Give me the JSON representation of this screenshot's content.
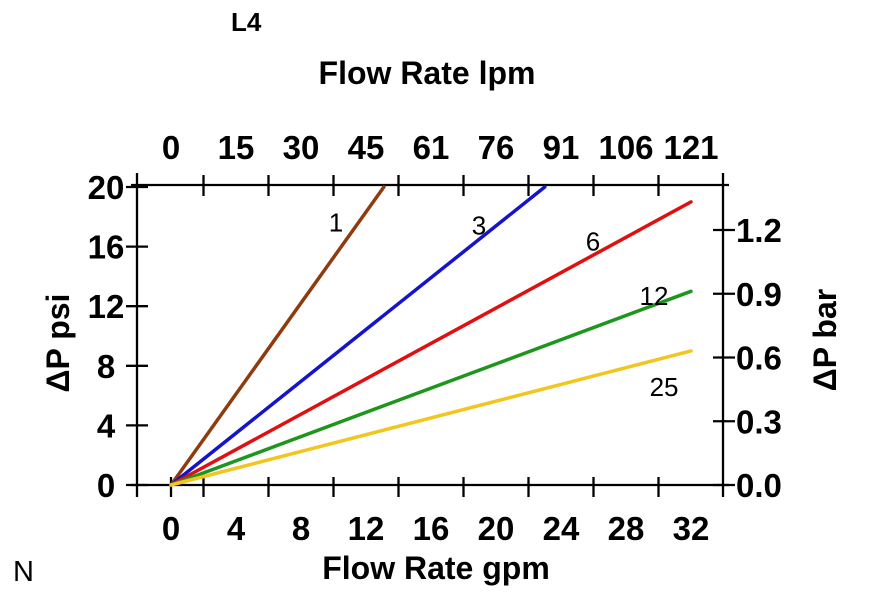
{
  "chart_data": {
    "type": "line",
    "title": "L4",
    "corner_note": "N",
    "grid": false,
    "legend": "inline curve labels",
    "axes": {
      "top": {
        "title": "Flow Rate lpm",
        "unit": "lpm",
        "labels": [
          "0",
          "15",
          "30",
          "45",
          "61",
          "76",
          "91",
          "106",
          "121"
        ],
        "label_positions_gpm": [
          0,
          4,
          8,
          12,
          16,
          20,
          24,
          28,
          32
        ],
        "tick_positions_gpm": [
          2,
          6,
          10,
          14,
          18,
          22,
          26,
          30
        ],
        "range_lpm": [
          0,
          121
        ]
      },
      "bottom": {
        "title": "Flow Rate gpm",
        "unit": "gpm",
        "labels": [
          "0",
          "4",
          "8",
          "12",
          "16",
          "20",
          "24",
          "28",
          "32"
        ],
        "label_positions_gpm": [
          0,
          4,
          8,
          12,
          16,
          20,
          24,
          28,
          32
        ],
        "tick_positions_gpm": [
          0,
          2,
          6,
          10,
          14,
          18,
          22,
          26,
          30
        ],
        "range_gpm": [
          0,
          32
        ]
      },
      "left": {
        "title": "ΔP psi",
        "unit": "psi",
        "labels": [
          "0",
          "4",
          "8",
          "12",
          "16",
          "20"
        ],
        "label_positions_psi": [
          0,
          4,
          8,
          12,
          16,
          20
        ],
        "range_psi": [
          0,
          20
        ]
      },
      "right": {
        "title": "ΔP bar",
        "unit": "bar",
        "labels": [
          "0.0",
          "0.3",
          "0.6",
          "0.9",
          "1.2"
        ],
        "label_positions_bar": [
          0,
          0.3,
          0.6,
          0.9,
          1.2
        ],
        "range_bar": [
          0,
          1.38
        ]
      }
    },
    "series": [
      {
        "label": "1",
        "color": "#8F3B10",
        "points_gpm_psi": [
          [
            0,
            0
          ],
          [
            13.1,
            20
          ]
        ],
        "label_pos_gpm_psi": [
          10.15,
          17.7
        ]
      },
      {
        "label": "3",
        "color": "#1414CC",
        "points_gpm_psi": [
          [
            0,
            0
          ],
          [
            23.0,
            20
          ]
        ],
        "label_pos_gpm_psi": [
          18.95,
          17.5
        ]
      },
      {
        "label": "6",
        "color": "#E01010",
        "points_gpm_psi": [
          [
            0,
            0
          ],
          [
            32,
            19
          ]
        ],
        "label_pos_gpm_psi": [
          25.97,
          16.4
        ]
      },
      {
        "label": "12",
        "color": "#1E961E",
        "points_gpm_psi": [
          [
            0,
            0
          ],
          [
            32,
            13
          ]
        ],
        "label_pos_gpm_psi": [
          29.72,
          12.75
        ]
      },
      {
        "label": "25",
        "color": "#F2C51F",
        "points_gpm_psi": [
          [
            0,
            0
          ],
          [
            32,
            9
          ]
        ],
        "label_pos_gpm_psi": [
          30.34,
          6.65
        ]
      }
    ]
  },
  "colors": {
    "axis": "#000000",
    "text": "#000000",
    "background": "#ffffff"
  }
}
